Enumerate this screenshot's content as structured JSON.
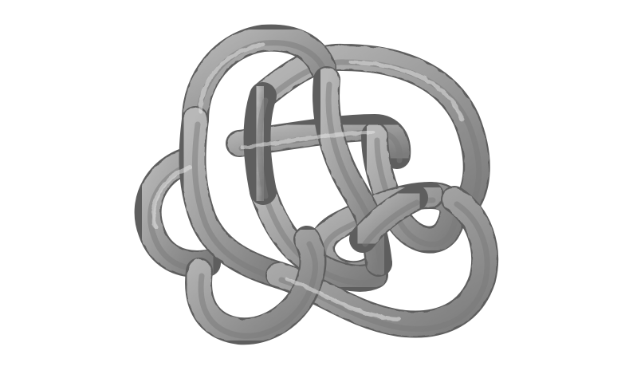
{
  "scene": {
    "subject": "3d-knot-render",
    "background_color": "#ffffff",
    "tube_color": "#9a9a9a",
    "tube_highlight_color": "#e6e6e6",
    "tube_shadow_color": "#5e5e5e"
  }
}
